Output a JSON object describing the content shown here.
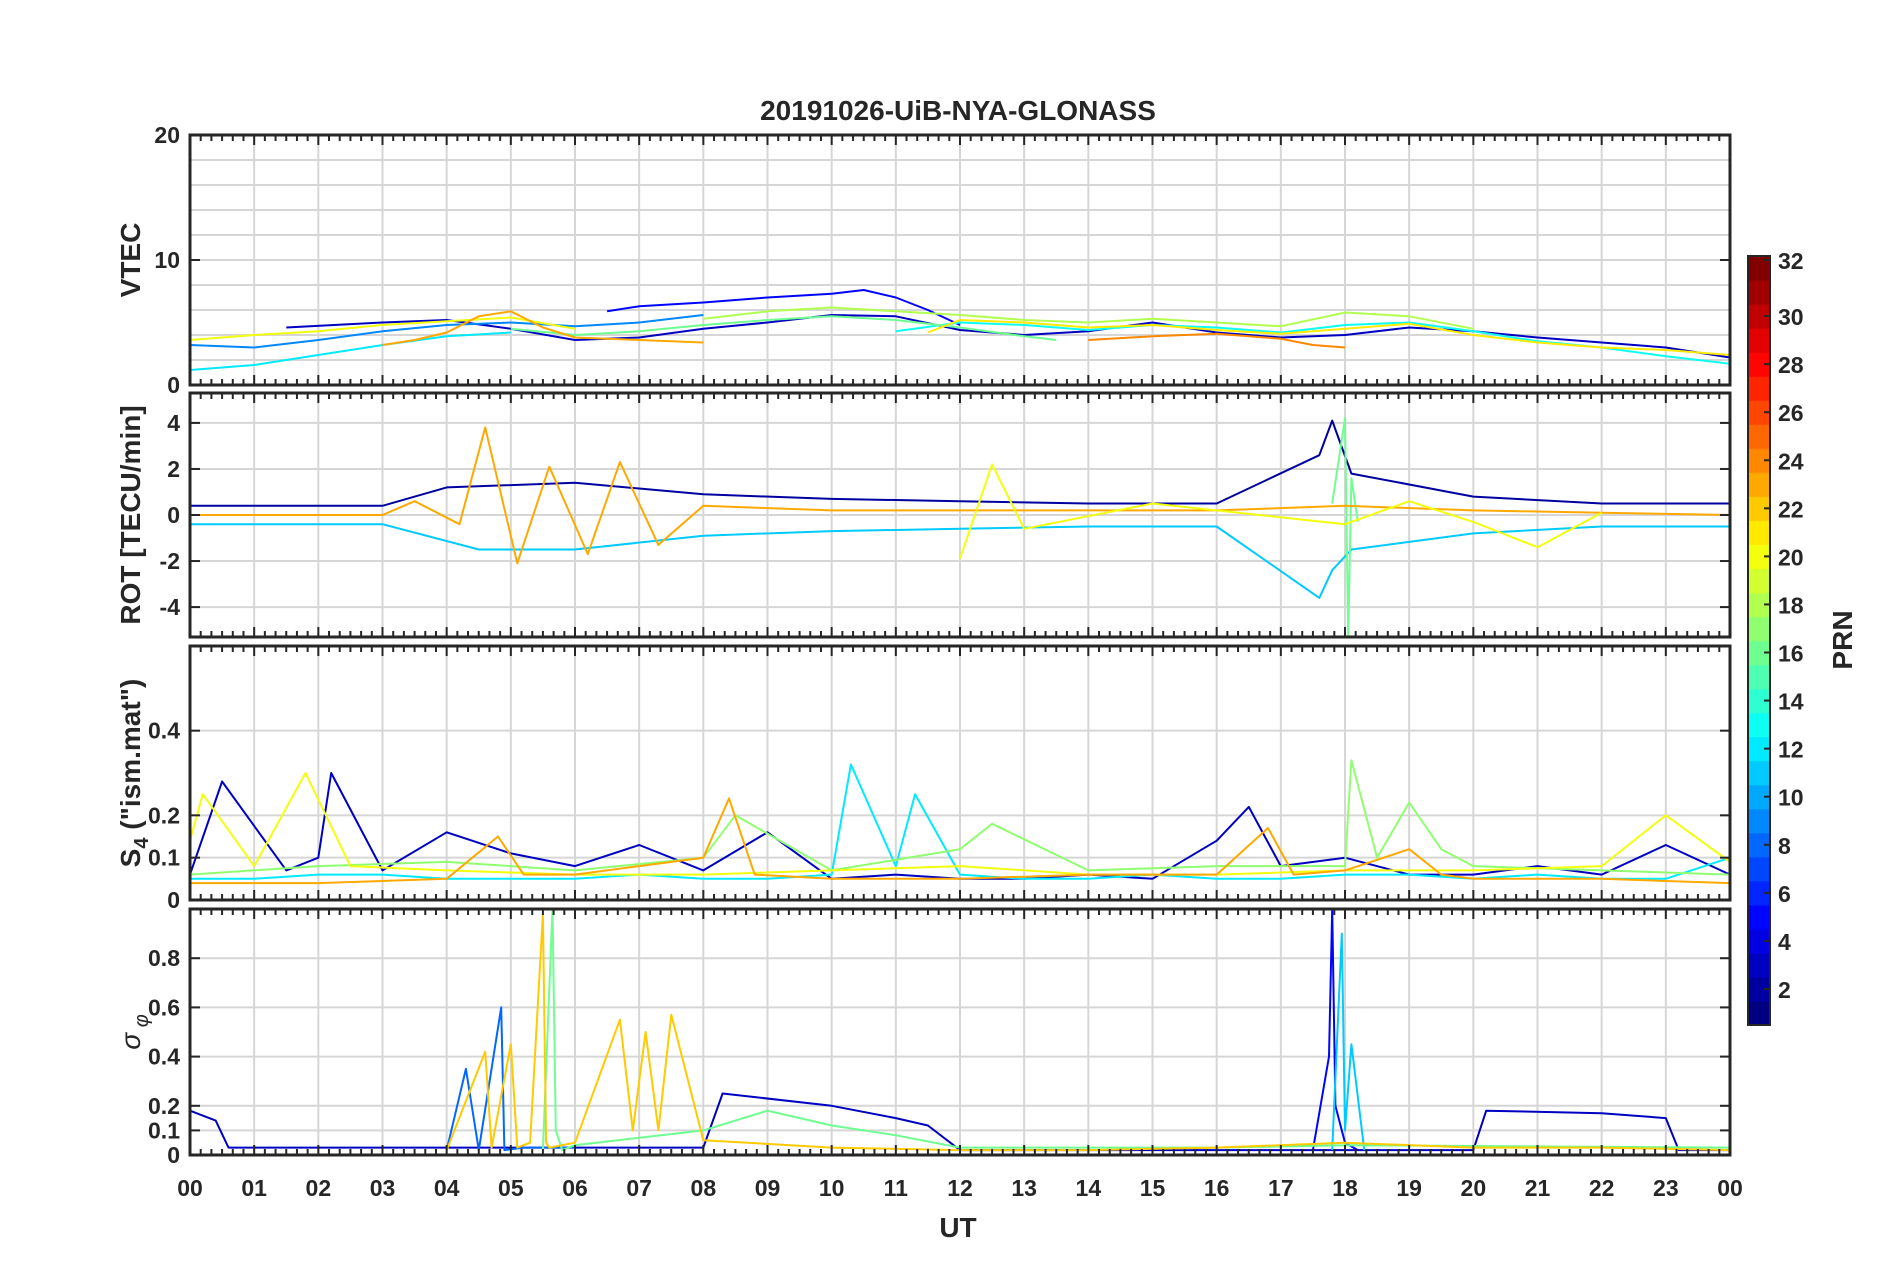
{
  "chart_data": {
    "type": "line",
    "title": "20191026-UiB-NYA-GLONASS",
    "xlabel": "UT",
    "x_ticks": [
      "00",
      "01",
      "02",
      "03",
      "04",
      "05",
      "06",
      "07",
      "08",
      "09",
      "10",
      "11",
      "12",
      "13",
      "14",
      "15",
      "16",
      "17",
      "18",
      "19",
      "20",
      "21",
      "22",
      "23",
      "00"
    ],
    "xlim": [
      0,
      24
    ],
    "grid": true,
    "colormap": {
      "name": "jet",
      "label": "PRN",
      "range": [
        1,
        32
      ],
      "ticks": [
        "2",
        "4",
        "6",
        "8",
        "10",
        "12",
        "14",
        "16",
        "18",
        "20",
        "22",
        "24",
        "26",
        "28",
        "30",
        "32"
      ]
    },
    "panels": [
      {
        "ylabel": "VTEC",
        "ylim": [
          0,
          20
        ],
        "y_ticks": [
          "0",
          "10",
          "20"
        ],
        "y_tick_values": [
          0,
          10,
          20
        ],
        "minor_grid": true,
        "series": [
          {
            "prn": 3,
            "x": [
              1.5,
              3,
              4,
              5,
              6,
              7,
              8,
              9,
              10,
              11,
              12,
              13,
              14,
              15,
              16,
              17,
              18,
              19,
              20,
              21,
              22,
              23,
              24
            ],
            "y": [
              4.6,
              5.0,
              5.2,
              4.5,
              3.6,
              3.8,
              4.5,
              5.0,
              5.6,
              5.5,
              4.4,
              4.0,
              4.3,
              5.0,
              4.2,
              3.8,
              4.0,
              4.6,
              4.3,
              3.8,
              3.4,
              3.0,
              2.2
            ]
          },
          {
            "prn": 5,
            "x": [
              6.5,
              7,
              8,
              9,
              10,
              10.5,
              11,
              11.5,
              12
            ],
            "y": [
              5.9,
              6.3,
              6.6,
              7.0,
              7.3,
              7.6,
              7.0,
              6.0,
              4.8
            ]
          },
          {
            "prn": 9,
            "x": [
              0,
              1,
              2,
              3,
              4,
              5,
              6,
              7,
              8
            ],
            "y": [
              3.2,
              3.0,
              3.6,
              4.3,
              4.8,
              5.0,
              4.7,
              5.0,
              5.6
            ]
          },
          {
            "prn": 12,
            "x": [
              0,
              1,
              2,
              3,
              4,
              5
            ],
            "y": [
              1.2,
              1.6,
              2.4,
              3.2,
              3.9,
              4.2
            ]
          },
          {
            "prn": 13,
            "x": [
              11,
              12,
              13,
              14,
              15,
              16,
              17,
              18,
              19,
              20,
              21,
              22,
              23,
              24
            ],
            "y": [
              4.3,
              5.0,
              4.8,
              4.4,
              4.8,
              4.6,
              4.2,
              4.8,
              5.0,
              4.3,
              3.5,
              3.0,
              2.3,
              1.7
            ]
          },
          {
            "prn": 16,
            "x": [
              5,
              6,
              7,
              8,
              9,
              10,
              11,
              12,
              13,
              13.5
            ],
            "y": [
              4.5,
              4.0,
              4.3,
              4.8,
              5.2,
              5.5,
              5.2,
              4.6,
              3.9,
              3.6
            ]
          },
          {
            "prn": 18,
            "x": [
              8,
              9,
              10,
              11,
              12,
              13,
              14,
              15,
              16,
              17,
              18,
              19,
              20
            ],
            "y": [
              5.3,
              5.9,
              6.2,
              5.9,
              5.6,
              5.2,
              5.0,
              5.3,
              5.0,
              4.7,
              5.8,
              5.5,
              4.5
            ]
          },
          {
            "prn": 20,
            "x": [
              0,
              1,
              2,
              3,
              4,
              5,
              6
            ],
            "y": [
              3.6,
              4.0,
              4.3,
              4.8,
              5.1,
              5.4,
              4.5
            ]
          },
          {
            "prn": 21,
            "x": [
              11.5,
              12,
              13,
              14,
              15,
              16,
              17,
              18,
              19,
              20,
              21,
              22,
              23,
              24
            ],
            "y": [
              4.2,
              5.2,
              5.0,
              4.6,
              4.8,
              4.4,
              4.1,
              4.5,
              4.9,
              4.0,
              3.4,
              3.0,
              2.8,
              2.4
            ]
          },
          {
            "prn": 23,
            "x": [
              3,
              3.5,
              4,
              4.5,
              5,
              5.5,
              6,
              7,
              8
            ],
            "y": [
              3.2,
              3.6,
              4.2,
              5.5,
              5.9,
              4.6,
              3.8,
              3.6,
              3.4
            ]
          },
          {
            "prn": 24,
            "x": [
              14,
              15,
              16,
              17,
              17.5,
              18
            ],
            "y": [
              3.6,
              3.9,
              4.1,
              3.7,
              3.2,
              3.0
            ]
          }
        ]
      },
      {
        "ylabel": "ROT [TECU/min]",
        "ylim": [
          -5.3,
          5.3
        ],
        "y_ticks": [
          "-4",
          "-2",
          "0",
          "2",
          "4"
        ],
        "y_tick_values": [
          -4,
          -2,
          0,
          2,
          4
        ],
        "minor_grid": false,
        "series": [
          {
            "prn": 2,
            "x": [
              0,
              3,
              4,
              6,
              8,
              10,
              12,
              14,
              16,
              17.6,
              17.8,
              18.1,
              20,
              22,
              24
            ],
            "y": [
              0.4,
              0.4,
              1.2,
              1.4,
              0.9,
              0.7,
              0.6,
              0.5,
              0.5,
              2.6,
              4.1,
              1.8,
              0.8,
              0.5,
              0.5
            ]
          },
          {
            "prn": 11,
            "x": [
              0,
              3,
              4.5,
              6,
              8,
              10,
              12,
              14,
              16,
              17.6,
              17.8,
              18.1,
              20,
              22,
              24
            ],
            "y": [
              -0.4,
              -0.4,
              -1.5,
              -1.5,
              -0.9,
              -0.7,
              -0.6,
              -0.5,
              -0.5,
              -3.6,
              -2.4,
              -1.5,
              -0.8,
              -0.5,
              -0.5
            ]
          },
          {
            "prn": 16,
            "x": [
              17.8,
              18,
              18.05,
              18.1,
              18.2
            ],
            "y": [
              0.5,
              4.2,
              -5.3,
              1.6,
              -0.3
            ]
          },
          {
            "prn": 23,
            "x": [
              0,
              3,
              3.5,
              4.2,
              4.6,
              5.1,
              5.6,
              6.2,
              6.7,
              7.3,
              8,
              10,
              12,
              14,
              16,
              18,
              20,
              22,
              24
            ],
            "y": [
              0,
              0,
              0.6,
              -0.4,
              3.8,
              -2.1,
              2.1,
              -1.7,
              2.3,
              -1.3,
              0.4,
              0.2,
              0.2,
              0.2,
              0.2,
              0.4,
              0.2,
              0.1,
              0
            ]
          },
          {
            "prn": 20,
            "x": [
              12,
              12.5,
              13,
              15,
              18,
              19,
              20,
              21,
              22
            ],
            "y": [
              -1.9,
              2.2,
              -0.6,
              0.5,
              -0.4,
              0.6,
              -0.3,
              -1.4,
              0.1
            ]
          }
        ]
      },
      {
        "ylabel": "S<sub>4</sub> (\"ism.mat\")",
        "ylabel_text": "S4 (\"ism.mat\")",
        "ylim": [
          0,
          0.6
        ],
        "y_ticks": [
          "0",
          "0.1",
          "0.2",
          "0.4"
        ],
        "y_tick_values": [
          0,
          0.1,
          0.2,
          0.4
        ],
        "minor_grid": false,
        "series": [
          {
            "prn": 3,
            "x": [
              0,
              0.5,
              1.5,
              2,
              2.2,
              3,
              4,
              5,
              6,
              7,
              8,
              9,
              10,
              11,
              12,
              13,
              14,
              15,
              16,
              16.5,
              17,
              18,
              19,
              20,
              21,
              22,
              23,
              24
            ],
            "y": [
              0.06,
              0.28,
              0.07,
              0.1,
              0.3,
              0.07,
              0.16,
              0.11,
              0.08,
              0.13,
              0.07,
              0.16,
              0.05,
              0.06,
              0.05,
              0.05,
              0.06,
              0.05,
              0.14,
              0.22,
              0.08,
              0.1,
              0.06,
              0.06,
              0.08,
              0.06,
              0.13,
              0.06
            ]
          },
          {
            "prn": 12,
            "x": [
              0,
              1,
              2,
              3,
              4,
              5,
              6,
              7,
              8,
              9,
              10,
              10.3,
              11,
              11.3,
              12,
              13,
              14,
              15,
              16,
              17,
              18,
              19,
              20,
              21,
              22,
              23,
              24
            ],
            "y": [
              0.05,
              0.05,
              0.06,
              0.06,
              0.05,
              0.05,
              0.05,
              0.06,
              0.05,
              0.05,
              0.06,
              0.32,
              0.08,
              0.25,
              0.06,
              0.05,
              0.05,
              0.06,
              0.05,
              0.05,
              0.06,
              0.06,
              0.05,
              0.06,
              0.05,
              0.05,
              0.1
            ]
          },
          {
            "prn": 17,
            "x": [
              0,
              2,
              4,
              6,
              8,
              8.5,
              10,
              12,
              12.5,
              14,
              16,
              18,
              18.1,
              18.5,
              19,
              19.5,
              20,
              22,
              24
            ],
            "y": [
              0.06,
              0.08,
              0.09,
              0.07,
              0.1,
              0.2,
              0.07,
              0.12,
              0.18,
              0.07,
              0.08,
              0.08,
              0.33,
              0.1,
              0.23,
              0.12,
              0.08,
              0.07,
              0.06
            ]
          },
          {
            "prn": 20,
            "x": [
              0,
              0.2,
              1,
              1.8,
              2.5,
              4,
              6,
              8,
              10,
              12,
              14,
              16,
              18,
              20,
              22,
              23,
              24
            ],
            "y": [
              0.14,
              0.25,
              0.08,
              0.3,
              0.08,
              0.07,
              0.06,
              0.06,
              0.07,
              0.08,
              0.06,
              0.06,
              0.07,
              0.07,
              0.08,
              0.2,
              0.09
            ]
          },
          {
            "prn": 23,
            "x": [
              0,
              2,
              4,
              4.8,
              5.2,
              6,
              7,
              8,
              8.4,
              8.8,
              10,
              12,
              14,
              16,
              16.8,
              17.2,
              18,
              19,
              19.5,
              20,
              22,
              24
            ],
            "y": [
              0.04,
              0.04,
              0.05,
              0.15,
              0.06,
              0.06,
              0.08,
              0.1,
              0.24,
              0.06,
              0.05,
              0.05,
              0.06,
              0.06,
              0.17,
              0.06,
              0.07,
              0.12,
              0.06,
              0.05,
              0.05,
              0.04
            ]
          }
        ]
      },
      {
        "ylabel": "σ φ",
        "ylim": [
          0,
          1
        ],
        "y_ticks": [
          "0",
          "0.1",
          "0.2",
          "0.4",
          "0.6",
          "0.8"
        ],
        "y_tick_values": [
          0,
          0.1,
          0.2,
          0.4,
          0.6,
          0.8
        ],
        "minor_grid": false,
        "series": [
          {
            "prn": 3,
            "x": [
              0,
              0.4,
              0.6,
              5,
              8,
              8.3,
              10,
              11,
              11.5,
              12,
              16,
              20,
              20.2,
              22,
              23,
              23.2,
              24
            ],
            "y": [
              0.18,
              0.14,
              0.03,
              0.03,
              0.03,
              0.25,
              0.2,
              0.15,
              0.12,
              0.02,
              0.02,
              0.02,
              0.18,
              0.17,
              0.15,
              0.02,
              0.02
            ]
          },
          {
            "prn": 5,
            "x": [
              17.5,
              17.75,
              17.8,
              17.85,
              18,
              18.2
            ],
            "y": [
              0.02,
              0.4,
              1.0,
              0.2,
              0.05,
              0.02
            ]
          },
          {
            "prn": 8,
            "x": [
              4,
              4.3,
              4.5,
              4.85,
              4.9,
              5.2,
              6
            ],
            "y": [
              0.02,
              0.35,
              0.02,
              0.6,
              0.02,
              0.03,
              0.03
            ]
          },
          {
            "prn": 11,
            "x": [
              17.8,
              17.95,
              18,
              18.1,
              18.3
            ],
            "y": [
              0.02,
              0.9,
              0.1,
              0.45,
              0.02
            ]
          },
          {
            "prn": 16,
            "x": [
              5.5,
              5.65,
              5.7,
              5.8,
              6,
              8,
              9,
              10,
              11,
              12,
              14,
              16,
              18,
              24
            ],
            "y": [
              0.02,
              1.0,
              0.1,
              0.02,
              0.04,
              0.1,
              0.18,
              0.12,
              0.08,
              0.03,
              0.03,
              0.03,
              0.04,
              0.03
            ]
          },
          {
            "prn": 22,
            "x": [
              4,
              4.6,
              4.7,
              5.0,
              5.1,
              5.3,
              5.5,
              5.55,
              5.6,
              6,
              6.7,
              6.9,
              7.1,
              7.3,
              7.5,
              8,
              10,
              12,
              14,
              16,
              18,
              20,
              22,
              24
            ],
            "y": [
              0.02,
              0.42,
              0.03,
              0.45,
              0.03,
              0.05,
              0.98,
              0.05,
              0.03,
              0.05,
              0.55,
              0.1,
              0.5,
              0.1,
              0.57,
              0.06,
              0.03,
              0.02,
              0.02,
              0.03,
              0.05,
              0.03,
              0.03,
              0.02
            ]
          }
        ]
      }
    ]
  }
}
